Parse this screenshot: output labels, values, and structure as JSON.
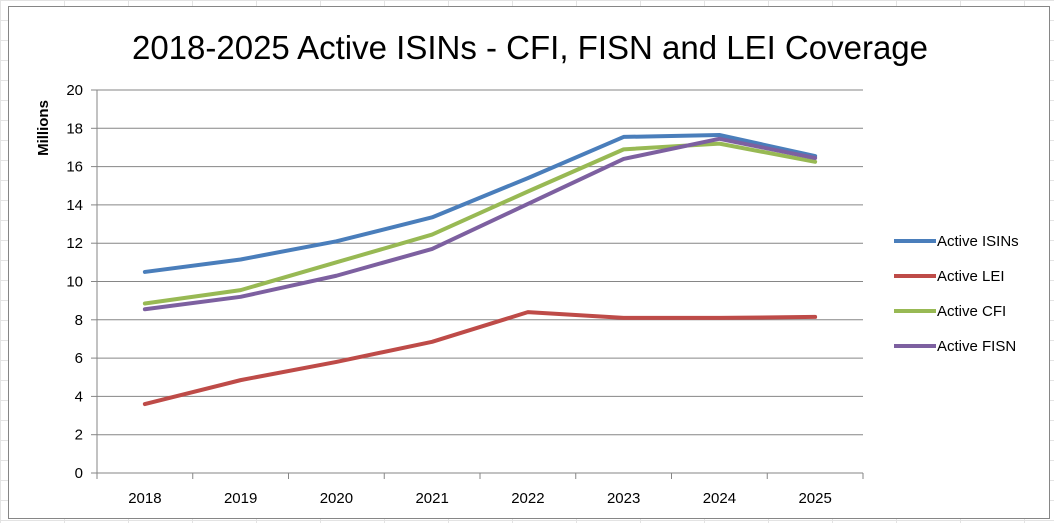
{
  "chart_data": {
    "type": "line",
    "title": "2018-2025 Active ISINs  - CFI, FISN and LEI Coverage",
    "xlabel": "",
    "ylabel": "Millions",
    "categories": [
      "2018",
      "2019",
      "2020",
      "2021",
      "2022",
      "2023",
      "2024",
      "2025"
    ],
    "ylim": [
      0,
      20
    ],
    "yticks": [
      "0",
      "2",
      "4",
      "6",
      "8",
      "10",
      "12",
      "14",
      "16",
      "18",
      "20"
    ],
    "grid": true,
    "legend": "right",
    "series": [
      {
        "name": "Active ISINs",
        "color": "#4A7EBB",
        "values": [
          10.5,
          11.15,
          12.1,
          13.35,
          15.4,
          17.55,
          17.65,
          16.55
        ]
      },
      {
        "name": "Active LEI",
        "color": "#BE4B48",
        "values": [
          3.6,
          4.85,
          5.8,
          6.85,
          8.4,
          8.1,
          8.1,
          8.15
        ]
      },
      {
        "name": "Active CFI",
        "color": "#98B954",
        "values": [
          8.85,
          9.55,
          11.0,
          12.45,
          14.7,
          16.9,
          17.2,
          16.25
        ]
      },
      {
        "name": "Active FISN",
        "color": "#7D60A0",
        "values": [
          8.55,
          9.2,
          10.3,
          11.7,
          14.05,
          16.4,
          17.45,
          16.45
        ]
      }
    ]
  }
}
